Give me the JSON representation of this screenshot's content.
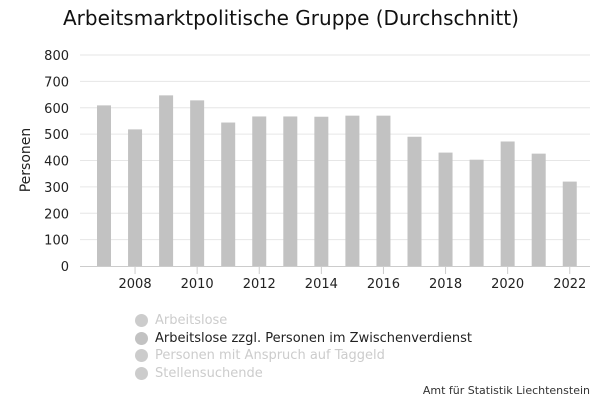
{
  "chart_data": {
    "type": "bar",
    "title": "Arbeitsmarktpolitische Gruppe (Durchschnitt)",
    "ylabel": "Personen",
    "xlabel": "",
    "ylim": [
      0,
      800
    ],
    "yticks": [
      0,
      100,
      200,
      300,
      400,
      500,
      600,
      700,
      800
    ],
    "xtick_labels": [
      "2008",
      "2010",
      "2012",
      "2014",
      "2016",
      "2018",
      "2020",
      "2022"
    ],
    "categories": [
      "2007",
      "2008",
      "2009",
      "2010",
      "2011",
      "2012",
      "2013",
      "2014",
      "2015",
      "2016",
      "2017",
      "2018",
      "2019",
      "2020",
      "2021",
      "2022"
    ],
    "series": [
      {
        "name": "Arbeitslose zzgl. Personen im Zwischenverdienst",
        "color": "#c2c2c2",
        "values": [
          609,
          518,
          647,
          628,
          544,
          567,
          567,
          566,
          570,
          570,
          490,
          430,
          403,
          472,
          426,
          320
        ]
      }
    ],
    "grid": true,
    "legend_position": "bottom-left"
  },
  "legend": [
    {
      "label": "Arbeitslose",
      "active": false
    },
    {
      "label": "Arbeitslose zzgl. Personen im Zwischenverdienst",
      "active": true
    },
    {
      "label": "Personen mit Anspruch auf Taggeld",
      "active": false
    },
    {
      "label": "Stellensuchende",
      "active": false
    }
  ],
  "credit": "Amt für Statistik Liechtenstein"
}
